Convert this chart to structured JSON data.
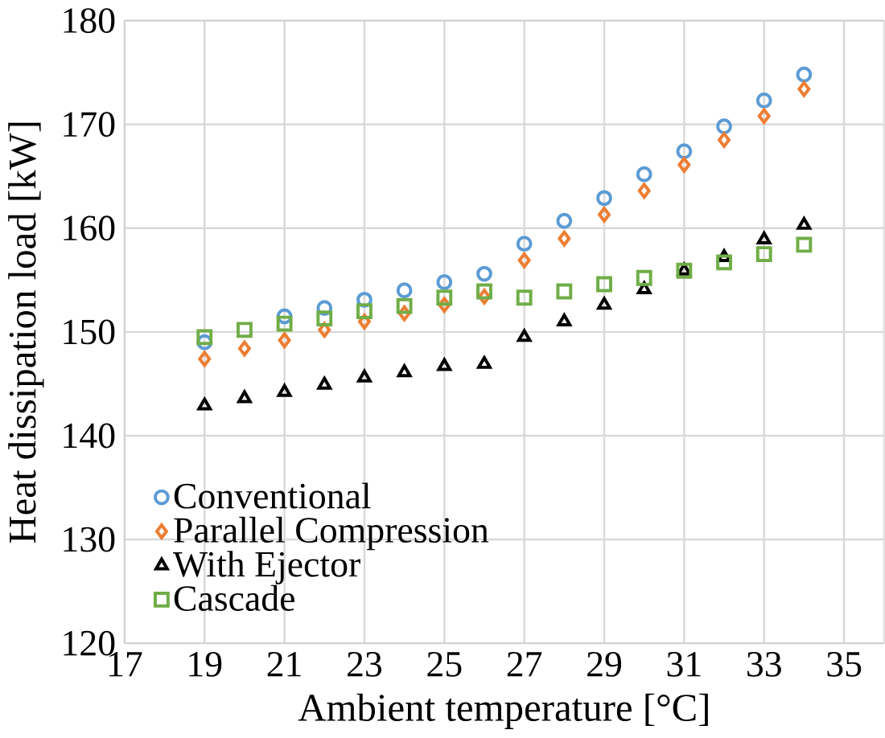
{
  "chart_data": {
    "type": "scatter",
    "xlabel": "Ambient temperature [°C]",
    "ylabel": "Heat dissipation load [kW]",
    "x": [
      19,
      20,
      21,
      22,
      23,
      24,
      25,
      26,
      27,
      28,
      29,
      30,
      31,
      32,
      33,
      34
    ],
    "series": [
      {
        "name": "Conventional",
        "color": "#5b9bd5",
        "marker": "circle",
        "values": [
          149.0,
          null,
          151.5,
          152.3,
          153.1,
          154.0,
          154.8,
          155.6,
          158.5,
          160.7,
          162.9,
          165.2,
          167.4,
          169.8,
          172.3,
          174.8
        ]
      },
      {
        "name": "Parallel Compression",
        "color": "#ed7d31",
        "marker": "diamond",
        "values": [
          147.4,
          148.4,
          149.2,
          150.2,
          151.0,
          151.8,
          152.6,
          153.4,
          156.9,
          159.0,
          161.3,
          163.6,
          166.1,
          168.5,
          170.8,
          173.4
        ]
      },
      {
        "name": "With Ejector",
        "color": "#000000",
        "marker": "triangle",
        "values": [
          142.9,
          143.6,
          144.2,
          144.9,
          145.6,
          146.1,
          146.7,
          146.9,
          149.5,
          151.0,
          152.6,
          154.1,
          155.9,
          157.2,
          158.9,
          160.3
        ]
      },
      {
        "name": "Cascade",
        "color": "#70ad47",
        "marker": "square",
        "values": [
          149.5,
          150.2,
          150.8,
          151.3,
          152.0,
          152.5,
          153.3,
          153.9,
          153.3,
          153.9,
          154.6,
          155.2,
          155.9,
          156.7,
          157.5,
          158.4
        ]
      }
    ],
    "xlim": [
      17,
      36
    ],
    "xticks": [
      17,
      19,
      21,
      23,
      25,
      27,
      29,
      31,
      33,
      35
    ],
    "ylim": [
      120,
      180
    ],
    "yticks": [
      120,
      130,
      140,
      150,
      160,
      170,
      180
    ],
    "grid": true,
    "legend": "bottom left"
  }
}
